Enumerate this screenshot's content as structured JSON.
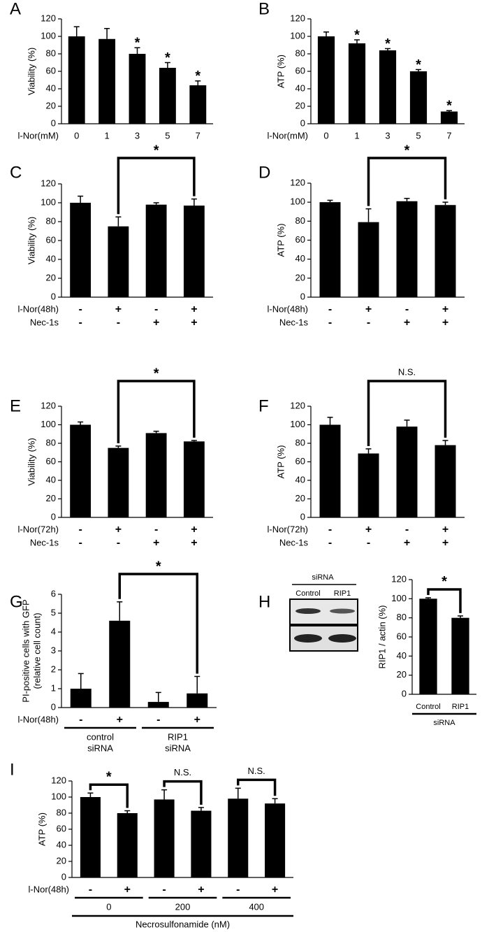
{
  "chart_data": [
    {
      "type": "bar",
      "panel": "A",
      "ylabel": "Viability (%)",
      "xlabel": "l-Nor(mM)",
      "categories": [
        "0",
        "1",
        "3",
        "5",
        "7"
      ],
      "values": [
        100,
        97,
        80,
        64,
        44
      ],
      "errors": [
        11,
        12,
        7,
        6,
        5
      ],
      "stars": [
        null,
        null,
        "*",
        "*",
        "*"
      ],
      "color": "#000000",
      "ylim": [
        0,
        120
      ],
      "yticks": [
        0,
        20,
        40,
        60,
        80,
        100,
        120
      ]
    },
    {
      "type": "bar",
      "panel": "B",
      "ylabel": "ATP (%)",
      "xlabel": "l-Nor(mM)",
      "categories": [
        "0",
        "1",
        "3",
        "5",
        "7"
      ],
      "values": [
        100,
        92,
        84,
        60,
        14
      ],
      "errors": [
        5,
        4,
        2,
        2,
        1
      ],
      "stars": [
        null,
        "*",
        "*",
        "*",
        "*"
      ],
      "color": "#000000",
      "ylim": [
        0,
        120
      ],
      "yticks": [
        0,
        20,
        40,
        60,
        80,
        100,
        120
      ]
    },
    {
      "type": "bar",
      "panel": "C",
      "ylabel": "Viability (%)",
      "rows": [
        {
          "label": "l-Nor(48h)",
          "signs": [
            "-",
            "+",
            "-",
            "+"
          ]
        },
        {
          "label": "Nec-1s",
          "signs": [
            "-",
            "-",
            "+",
            "+"
          ]
        }
      ],
      "values": [
        100,
        75,
        98,
        97
      ],
      "errors": [
        7,
        10,
        2,
        7
      ],
      "brackets": [
        {
          "from": 1,
          "to": 3,
          "label": "*"
        }
      ],
      "color": "#000000",
      "ylim": [
        0,
        120
      ],
      "yticks": [
        0,
        20,
        40,
        60,
        80,
        100,
        120
      ]
    },
    {
      "type": "bar",
      "panel": "D",
      "ylabel": "ATP (%)",
      "rows": [
        {
          "label": "l-Nor(48h)",
          "signs": [
            "-",
            "+",
            "-",
            "+"
          ]
        },
        {
          "label": "Nec-1s",
          "signs": [
            "-",
            "-",
            "+",
            "+"
          ]
        }
      ],
      "values": [
        100,
        79,
        101,
        97
      ],
      "errors": [
        2,
        14,
        3,
        3
      ],
      "brackets": [
        {
          "from": 1,
          "to": 3,
          "label": "*"
        }
      ],
      "color": "#000000",
      "ylim": [
        0,
        120
      ],
      "yticks": [
        0,
        20,
        40,
        60,
        80,
        100,
        120
      ]
    },
    {
      "type": "bar",
      "panel": "E",
      "ylabel": "Viability (%)",
      "rows": [
        {
          "label": "l-Nor(72h)",
          "signs": [
            "-",
            "+",
            "-",
            "+"
          ]
        },
        {
          "label": "Nec-1s",
          "signs": [
            "-",
            "-",
            "+",
            "+"
          ]
        }
      ],
      "values": [
        100,
        75,
        91,
        82
      ],
      "errors": [
        3,
        2,
        2,
        1
      ],
      "brackets": [
        {
          "from": 1,
          "to": 3,
          "label": "*"
        }
      ],
      "color": "#000000",
      "ylim": [
        0,
        120
      ],
      "yticks": [
        0,
        20,
        40,
        60,
        80,
        100,
        120
      ]
    },
    {
      "type": "bar",
      "panel": "F",
      "ylabel": "ATP (%)",
      "rows": [
        {
          "label": "l-Nor(72h)",
          "signs": [
            "-",
            "+",
            "-",
            "+"
          ]
        },
        {
          "label": "Nec-1s",
          "signs": [
            "-",
            "-",
            "+",
            "+"
          ]
        }
      ],
      "values": [
        100,
        69,
        98,
        78
      ],
      "errors": [
        8,
        5,
        7,
        5
      ],
      "brackets": [
        {
          "from": 1,
          "to": 3,
          "label": "N.S."
        }
      ],
      "color": "#000000",
      "ylim": [
        0,
        120
      ],
      "yticks": [
        0,
        20,
        40,
        60,
        80,
        100,
        120
      ]
    },
    {
      "type": "bar",
      "panel": "G",
      "ylabel": [
        "PI-positive cells with GFP",
        "(relative cell count)"
      ],
      "rows": [
        {
          "label": "l-Nor(48h)",
          "signs": [
            "-",
            "+",
            "-",
            "+"
          ]
        }
      ],
      "groups": [
        {
          "label": [
            "control",
            "siRNA"
          ],
          "span": [
            0,
            1
          ]
        },
        {
          "label": [
            "RIP1",
            "siRNA"
          ],
          "span": [
            2,
            3
          ]
        }
      ],
      "values": [
        1,
        4.6,
        0.3,
        0.75
      ],
      "errors": [
        0.8,
        1.0,
        0.5,
        0.9
      ],
      "brackets": [
        {
          "from": 1,
          "to": 3,
          "label": "*"
        }
      ],
      "color": "#000000",
      "ylim": [
        0,
        6
      ],
      "yticks": [
        0,
        1,
        2,
        3,
        4,
        5,
        6
      ]
    },
    {
      "type": "bar",
      "panel": "H",
      "ylabel": "RIP1 / actin (%)",
      "blot": {
        "title": "siRNA",
        "lanes": [
          "Control",
          "RIP1"
        ]
      },
      "categories": [
        "Control",
        "RIP1"
      ],
      "group_title": "siRNA",
      "values": [
        100,
        80
      ],
      "errors": [
        1,
        2
      ],
      "brackets": [
        {
          "from": 0,
          "to": 1,
          "label": "*"
        }
      ],
      "color": "#000000",
      "ylim": [
        0,
        120
      ],
      "yticks": [
        0,
        20,
        40,
        60,
        80,
        100,
        120
      ]
    },
    {
      "type": "bar",
      "panel": "I",
      "ylabel": "ATP (%)",
      "rows": [
        {
          "label": "l-Nor(48h)",
          "signs": [
            "-",
            "+",
            "-",
            "+",
            "-",
            "+"
          ]
        }
      ],
      "groups": [
        {
          "label": [
            "0"
          ],
          "span": [
            0,
            1
          ]
        },
        {
          "label": [
            "200"
          ],
          "span": [
            2,
            3
          ]
        },
        {
          "label": [
            "400"
          ],
          "span": [
            4,
            5
          ]
        }
      ],
      "group_title": "Necrosulfonamide (nM)",
      "values": [
        100,
        80,
        97,
        83,
        98,
        92
      ],
      "errors": [
        5,
        3,
        12,
        4,
        13,
        6
      ],
      "brackets": [
        {
          "from": 0,
          "to": 1,
          "label": "*"
        },
        {
          "from": 2,
          "to": 3,
          "label": "N.S."
        },
        {
          "from": 4,
          "to": 5,
          "label": "N.S."
        }
      ],
      "color": "#000000",
      "ylim": [
        0,
        120
      ],
      "yticks": [
        0,
        20,
        40,
        60,
        80,
        100,
        120
      ]
    }
  ]
}
